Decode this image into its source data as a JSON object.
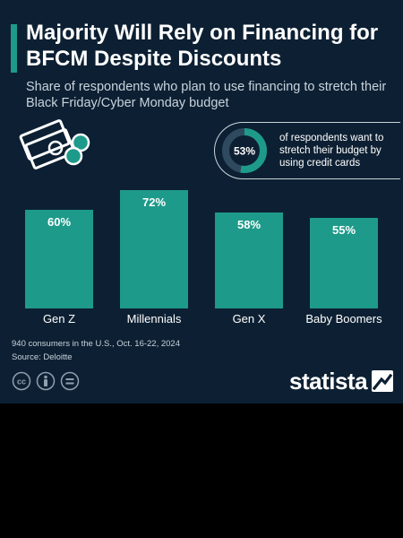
{
  "title": "Majority Will Rely on Financing for BFCM Despite Discounts",
  "subtitle": "Share of respondents who plan to use financing to stretch their Black Friday/Cyber Monday budget",
  "callout": {
    "value_label": "53%",
    "value": 0.53,
    "text": "of respondents want to stretch their budget by using credit cards"
  },
  "chart_data": {
    "type": "bar",
    "categories": [
      "Gen Z",
      "Millennials",
      "Gen X",
      "Baby Boomers"
    ],
    "values": [
      60,
      72,
      58,
      55
    ],
    "value_labels": [
      "60%",
      "72%",
      "58%",
      "55%"
    ],
    "ylim": [
      0,
      100
    ],
    "grid": false
  },
  "footnote": {
    "sample": "940 consumers in the U.S., Oct. 16-22, 2024",
    "source": "Source: Deloitte"
  },
  "brand": "statista",
  "colors": {
    "background": "#0d2033",
    "bar": "#1e9a8a",
    "text": "#ffffff",
    "muted": "#c9d3dc",
    "donut_track": "#2f4a5e"
  },
  "icons": [
    "money-icon",
    "cc-icon",
    "person-icon",
    "equals-icon",
    "statista-logo-icon"
  ]
}
